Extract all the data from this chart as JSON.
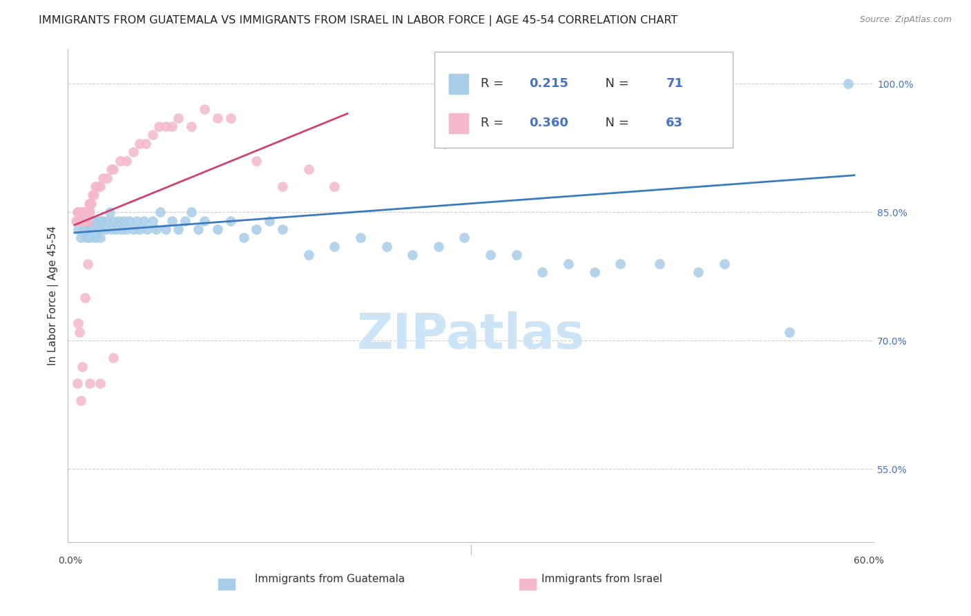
{
  "title": "IMMIGRANTS FROM GUATEMALA VS IMMIGRANTS FROM ISRAEL IN LABOR FORCE | AGE 45-54 CORRELATION CHART",
  "source": "Source: ZipAtlas.com",
  "ylabel": "In Labor Force | Age 45-54",
  "x_label_bottom_left": "0.0%",
  "x_label_bottom_right": "60.0%",
  "y_ticks_right": [
    "100.0%",
    "85.0%",
    "70.0%",
    "55.0%"
  ],
  "y_ticks_right_vals": [
    1.0,
    0.85,
    0.7,
    0.55
  ],
  "xlim": [
    -0.005,
    0.615
  ],
  "ylim": [
    0.465,
    1.04
  ],
  "legend_blue_R": "0.215",
  "legend_blue_N": "71",
  "legend_pink_R": "0.360",
  "legend_pink_N": "63",
  "blue_color": "#a8cde8",
  "pink_color": "#f4b8cb",
  "blue_line_color": "#3a7abf",
  "pink_line_color": "#d04070",
  "watermark": "ZIPatlas",
  "blue_scatter_x": [
    0.002,
    0.003,
    0.005,
    0.005,
    0.007,
    0.008,
    0.009,
    0.01,
    0.01,
    0.012,
    0.012,
    0.013,
    0.015,
    0.016,
    0.018,
    0.018,
    0.02,
    0.02,
    0.02,
    0.022,
    0.024,
    0.025,
    0.027,
    0.028,
    0.03,
    0.032,
    0.034,
    0.036,
    0.038,
    0.04,
    0.042,
    0.045,
    0.048,
    0.05,
    0.053,
    0.056,
    0.06,
    0.063,
    0.066,
    0.07,
    0.075,
    0.08,
    0.085,
    0.09,
    0.095,
    0.1,
    0.11,
    0.12,
    0.13,
    0.14,
    0.15,
    0.16,
    0.18,
    0.2,
    0.22,
    0.24,
    0.26,
    0.28,
    0.3,
    0.32,
    0.34,
    0.36,
    0.38,
    0.4,
    0.42,
    0.45,
    0.48,
    0.5,
    0.55,
    0.285,
    0.595
  ],
  "blue_scatter_y": [
    0.84,
    0.83,
    0.82,
    0.85,
    0.83,
    0.84,
    0.82,
    0.84,
    0.83,
    0.82,
    0.84,
    0.83,
    0.84,
    0.82,
    0.83,
    0.84,
    0.83,
    0.84,
    0.82,
    0.84,
    0.83,
    0.84,
    0.85,
    0.83,
    0.84,
    0.83,
    0.84,
    0.83,
    0.84,
    0.83,
    0.84,
    0.83,
    0.84,
    0.83,
    0.84,
    0.83,
    0.84,
    0.83,
    0.85,
    0.83,
    0.84,
    0.83,
    0.84,
    0.85,
    0.83,
    0.84,
    0.83,
    0.84,
    0.82,
    0.83,
    0.84,
    0.83,
    0.8,
    0.81,
    0.82,
    0.81,
    0.8,
    0.81,
    0.82,
    0.8,
    0.8,
    0.78,
    0.79,
    0.78,
    0.79,
    0.79,
    0.78,
    0.79,
    0.71,
    0.93,
    1.0
  ],
  "pink_scatter_x": [
    0.001,
    0.002,
    0.002,
    0.003,
    0.003,
    0.004,
    0.004,
    0.005,
    0.005,
    0.005,
    0.006,
    0.006,
    0.007,
    0.007,
    0.008,
    0.008,
    0.009,
    0.009,
    0.01,
    0.01,
    0.01,
    0.011,
    0.011,
    0.012,
    0.012,
    0.013,
    0.014,
    0.015,
    0.016,
    0.018,
    0.02,
    0.022,
    0.025,
    0.028,
    0.03,
    0.035,
    0.04,
    0.045,
    0.05,
    0.055,
    0.06,
    0.065,
    0.07,
    0.075,
    0.08,
    0.09,
    0.1,
    0.11,
    0.12,
    0.14,
    0.16,
    0.18,
    0.2,
    0.002,
    0.003,
    0.004,
    0.005,
    0.006,
    0.008,
    0.01,
    0.012,
    0.02,
    0.03
  ],
  "pink_scatter_y": [
    0.84,
    0.84,
    0.85,
    0.84,
    0.85,
    0.84,
    0.85,
    0.84,
    0.85,
    0.84,
    0.84,
    0.85,
    0.84,
    0.85,
    0.84,
    0.85,
    0.84,
    0.85,
    0.85,
    0.84,
    0.85,
    0.85,
    0.86,
    0.85,
    0.86,
    0.86,
    0.87,
    0.87,
    0.88,
    0.88,
    0.88,
    0.89,
    0.89,
    0.9,
    0.9,
    0.91,
    0.91,
    0.92,
    0.93,
    0.93,
    0.94,
    0.95,
    0.95,
    0.95,
    0.96,
    0.95,
    0.97,
    0.96,
    0.96,
    0.91,
    0.88,
    0.9,
    0.88,
    0.65,
    0.72,
    0.71,
    0.63,
    0.67,
    0.75,
    0.79,
    0.65,
    0.65,
    0.68
  ],
  "blue_trend_x": [
    0.0,
    0.6
  ],
  "blue_trend_y": [
    0.826,
    0.893
  ],
  "pink_trend_x": [
    0.0,
    0.21
  ],
  "pink_trend_y": [
    0.835,
    0.965
  ],
  "title_fontsize": 11.5,
  "source_fontsize": 9,
  "axis_label_fontsize": 11,
  "tick_fontsize": 10,
  "legend_fontsize": 13,
  "watermark_fontsize": 52,
  "watermark_color": "#cce4f5",
  "background_color": "#ffffff",
  "grid_color": "#cccccc"
}
